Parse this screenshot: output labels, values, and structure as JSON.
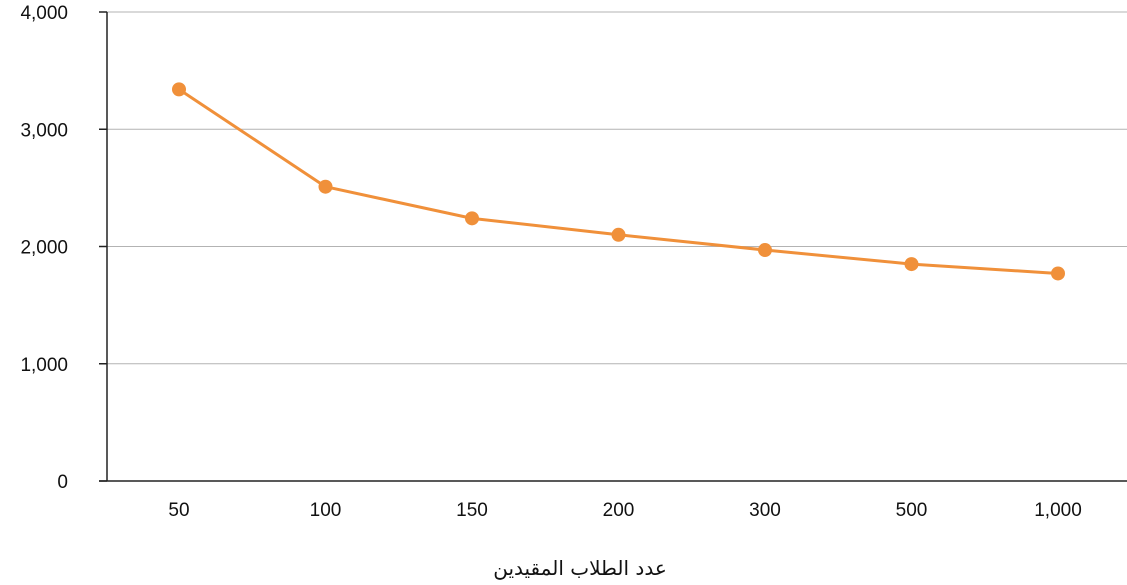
{
  "chart_data": {
    "type": "line",
    "title": "",
    "xlabel": "عدد الطلاب المقيدين",
    "ylabel": "",
    "categories": [
      "50",
      "100",
      "150",
      "200",
      "300",
      "500",
      "1,000"
    ],
    "series": [
      {
        "values": [
          3340,
          2510,
          2240,
          2100,
          1970,
          1850,
          1770
        ]
      }
    ],
    "ylim": [
      0,
      4000
    ],
    "yticks": [
      "0",
      "1,000",
      "2,000",
      "3,000",
      "4,000"
    ],
    "grid": true,
    "legend": "none",
    "colors": {
      "series": "#F0903A",
      "grid": "#B3B3B3",
      "axis": "#222222"
    }
  }
}
